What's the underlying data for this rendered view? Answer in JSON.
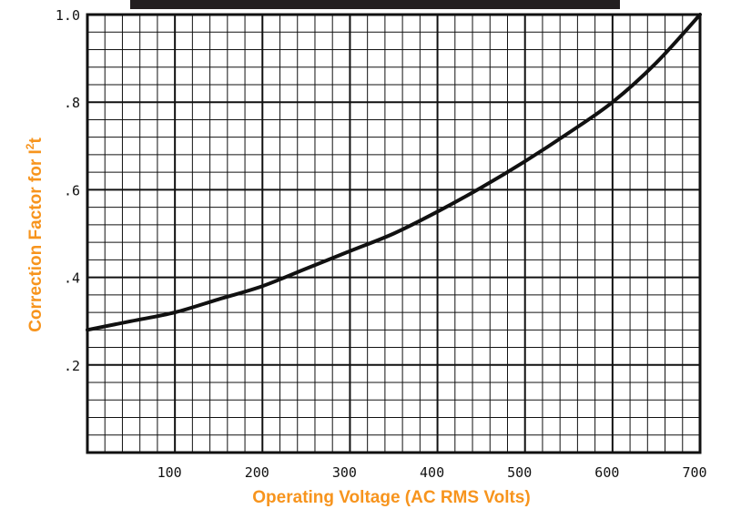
{
  "chart_data": {
    "type": "line",
    "title": "",
    "xlabel": "Operating Voltage (AC RMS Volts)",
    "ylabel_main": "Correction Factor for I",
    "ylabel_sup": "2",
    "ylabel_tail": "t",
    "xlim": [
      0,
      700
    ],
    "ylim": [
      0,
      1.0
    ],
    "x_ticks": [
      100,
      200,
      300,
      400,
      500,
      600,
      700
    ],
    "x_tick_labels": [
      "100",
      "200",
      "300",
      "400",
      "500",
      "600",
      "700"
    ],
    "y_ticks": [
      0.2,
      0.4,
      0.6,
      0.8,
      1.0
    ],
    "y_tick_labels": [
      ".2",
      ".4",
      ".6",
      ".8",
      "1.0"
    ],
    "grid": true,
    "minor_x_step": 20,
    "minor_y_step": 0.04,
    "series": [
      {
        "x": [
          0,
          50,
          100,
          150,
          200,
          250,
          300,
          350,
          400,
          450,
          500,
          550,
          600,
          650,
          700
        ],
        "y": [
          0.28,
          0.3,
          0.32,
          0.35,
          0.38,
          0.42,
          0.46,
          0.5,
          0.55,
          0.605,
          0.665,
          0.73,
          0.8,
          0.89,
          1.0
        ]
      }
    ]
  },
  "colors": {
    "label_orange": "#f7941d",
    "ink": "#111111",
    "banner": "#231f20"
  }
}
